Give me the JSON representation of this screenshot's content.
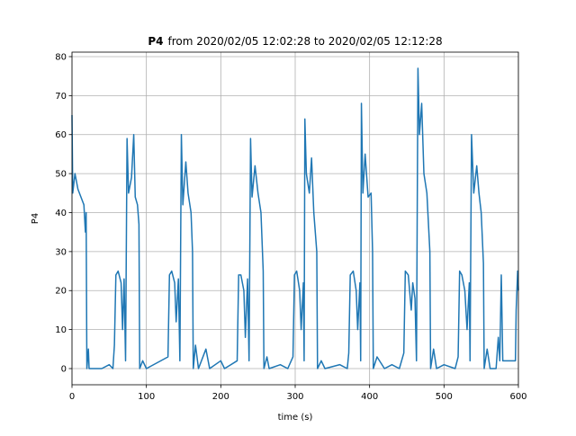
{
  "chart_data": {
    "type": "line",
    "title": [
      "P4",
      "from 2020/02/05 12:02:28 to 2020/02/05 12:12:28"
    ],
    "xlabel": "time (s)",
    "ylabel": "P4",
    "color": "#1f77b4",
    "grid": true,
    "xlim": [
      0,
      600
    ],
    "ylim": [
      -4.15,
      81.15
    ],
    "xticks": [
      0,
      100,
      200,
      300,
      400,
      500,
      600
    ],
    "yticks": [
      0,
      10,
      20,
      30,
      40,
      50,
      60,
      70,
      80
    ],
    "x": [
      0,
      1,
      4,
      8,
      12,
      16,
      18,
      19,
      20,
      22,
      23,
      40,
      50,
      55,
      57,
      59,
      62,
      66,
      68,
      70,
      72,
      74,
      76,
      80,
      83,
      85,
      88,
      90,
      91,
      95,
      100,
      129,
      131,
      134,
      138,
      140,
      143,
      145,
      147,
      149,
      153,
      156,
      160,
      162,
      163,
      166,
      170,
      180,
      185,
      200,
      205,
      222,
      224,
      227,
      231,
      233,
      236,
      238,
      240,
      242,
      246,
      250,
      254,
      257,
      258,
      262,
      265,
      280,
      290,
      297,
      299,
      302,
      306,
      308,
      311,
      312,
      313,
      315,
      319,
      322,
      325,
      329,
      330,
      335,
      340,
      360,
      370,
      372,
      374,
      378,
      382,
      384,
      387,
      388,
      389,
      391,
      394,
      398,
      402,
      404,
      405,
      410,
      420,
      430,
      440,
      446,
      448,
      452,
      456,
      458,
      461,
      463,
      465,
      467,
      470,
      473,
      477,
      481,
      482,
      486,
      490,
      500,
      515,
      519,
      521,
      524,
      528,
      531,
      534,
      535,
      537,
      540,
      544,
      547,
      550,
      553,
      554,
      558,
      562,
      570,
      573,
      575,
      577,
      579,
      596,
      597,
      599,
      600
    ],
    "values": [
      65,
      45,
      50,
      46,
      44,
      42,
      35,
      40,
      0,
      5,
      0,
      0,
      1,
      0,
      6,
      24,
      25,
      22,
      10,
      23,
      2,
      59,
      45,
      49,
      60,
      44,
      42,
      37,
      0,
      2,
      0,
      3,
      24,
      25,
      22,
      12,
      23,
      2,
      60,
      42,
      53,
      45,
      40,
      30,
      0,
      6,
      0,
      5,
      0,
      2,
      0,
      2,
      24,
      24,
      20,
      8,
      23,
      2,
      59,
      44,
      52,
      45,
      40,
      25,
      0,
      3,
      0,
      1,
      0,
      3,
      24,
      25,
      20,
      10,
      22,
      2,
      64,
      50,
      45,
      54,
      40,
      30,
      0,
      2,
      0,
      1,
      0,
      4,
      24,
      25,
      20,
      10,
      22,
      2,
      68,
      45,
      55,
      44,
      45,
      30,
      0,
      3,
      0,
      1,
      0,
      4,
      25,
      24,
      15,
      22,
      18,
      2,
      77,
      60,
      68,
      50,
      45,
      30,
      0,
      5,
      0,
      1,
      0,
      3,
      25,
      24,
      20,
      10,
      22,
      2,
      60,
      45,
      52,
      45,
      40,
      27,
      0,
      5,
      0,
      0,
      8,
      2,
      24,
      2,
      2,
      15,
      25,
      20
    ]
  }
}
